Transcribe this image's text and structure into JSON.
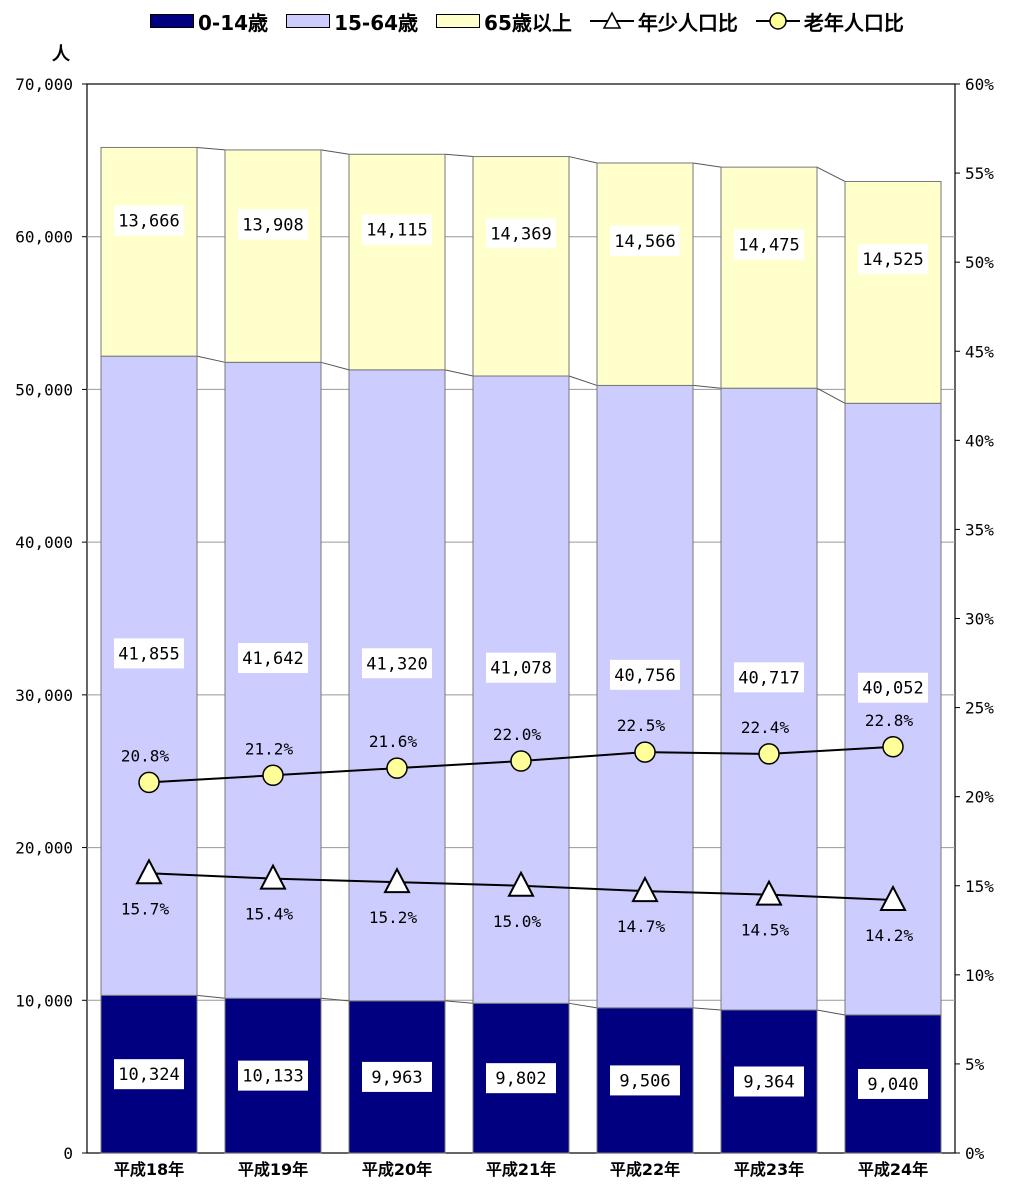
{
  "chart_data": {
    "type": "bar",
    "stacked": true,
    "categories": [
      "平成18年",
      "平成19年",
      "平成20年",
      "平成21年",
      "平成22年",
      "平成23年",
      "平成24年"
    ],
    "series": [
      {
        "name": "0-14歳",
        "values": [
          10324,
          10133,
          9963,
          9802,
          9506,
          9364,
          9040
        ],
        "color": "#000080",
        "labels": [
          "10,324",
          "10,133",
          "9,963",
          "9,802",
          "9,506",
          "9,364",
          "9,040"
        ]
      },
      {
        "name": "15-64歳",
        "values": [
          41855,
          41642,
          41320,
          41078,
          40756,
          40717,
          40052
        ],
        "color": "#ccccff",
        "labels": [
          "41,855",
          "41,642",
          "41,320",
          "41,078",
          "40,756",
          "40,717",
          "40,052"
        ]
      },
      {
        "name": "65歳以上",
        "values": [
          13666,
          13908,
          14115,
          14369,
          14566,
          14475,
          14525
        ],
        "color": "#ffffcc",
        "labels": [
          "13,666",
          "13,908",
          "14,115",
          "14,369",
          "14,566",
          "14,475",
          "14,525"
        ]
      }
    ],
    "line_series": [
      {
        "name": "年少人口比",
        "marker": "triangle",
        "axis": "right",
        "values": [
          15.7,
          15.4,
          15.2,
          15.0,
          14.7,
          14.5,
          14.2
        ],
        "labels": [
          "15.7%",
          "15.4%",
          "15.2%",
          "15.0%",
          "14.7%",
          "14.5%",
          "14.2%"
        ]
      },
      {
        "name": "老年人口比",
        "marker": "circle",
        "axis": "right",
        "values": [
          20.8,
          21.2,
          21.6,
          22.0,
          22.5,
          22.4,
          22.8
        ],
        "labels": [
          "20.8%",
          "21.2%",
          "21.6%",
          "22.0%",
          "22.5%",
          "22.4%",
          "22.8%"
        ]
      }
    ],
    "ylabel_left": "人",
    "ylim_left": [
      0,
      70000
    ],
    "ylim_right": [
      0,
      60
    ],
    "left_ticks": [
      "0",
      "10,000",
      "20,000",
      "30,000",
      "40,000",
      "50,000",
      "60,000",
      "70,000"
    ],
    "right_ticks": [
      "0%",
      "5%",
      "10%",
      "15%",
      "20%",
      "25%",
      "30%",
      "35%",
      "40%",
      "45%",
      "50%",
      "55%",
      "60%"
    ],
    "grid": true,
    "legend_position": "top"
  }
}
